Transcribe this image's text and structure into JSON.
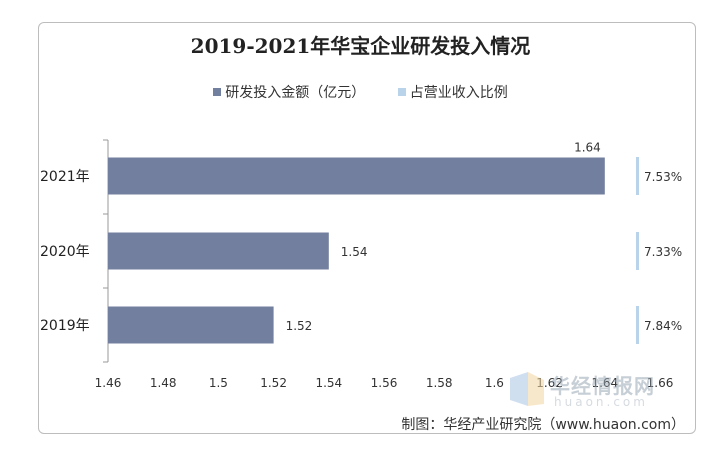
{
  "chart_data": {
    "type": "bar",
    "orientation": "horizontal",
    "title": "2019-2021年华宝企业研发投入情况",
    "categories": [
      "2021年",
      "2020年",
      "2019年"
    ],
    "series": [
      {
        "name": "研发投入金额（亿元）",
        "values": [
          1.64,
          1.54,
          1.52
        ],
        "color": "#737f9e"
      },
      {
        "name": "占营业收入比例",
        "values": [
          "7.53%",
          "7.33%",
          "7.84%"
        ],
        "color": "#b9d3ea"
      }
    ],
    "x_ticks": [
      "1.46",
      "1.48",
      "1.5",
      "1.52",
      "1.54",
      "1.56",
      "1.58",
      "1.6",
      "1.62",
      "1.64",
      "1.66"
    ],
    "xlim": [
      1.46,
      1.66
    ],
    "grid": false,
    "legend_position": "top"
  },
  "source": "制图：华经产业研究院（www.huaon.com）",
  "watermark": {
    "text": "华经情报网",
    "sub": "huaon.com"
  }
}
